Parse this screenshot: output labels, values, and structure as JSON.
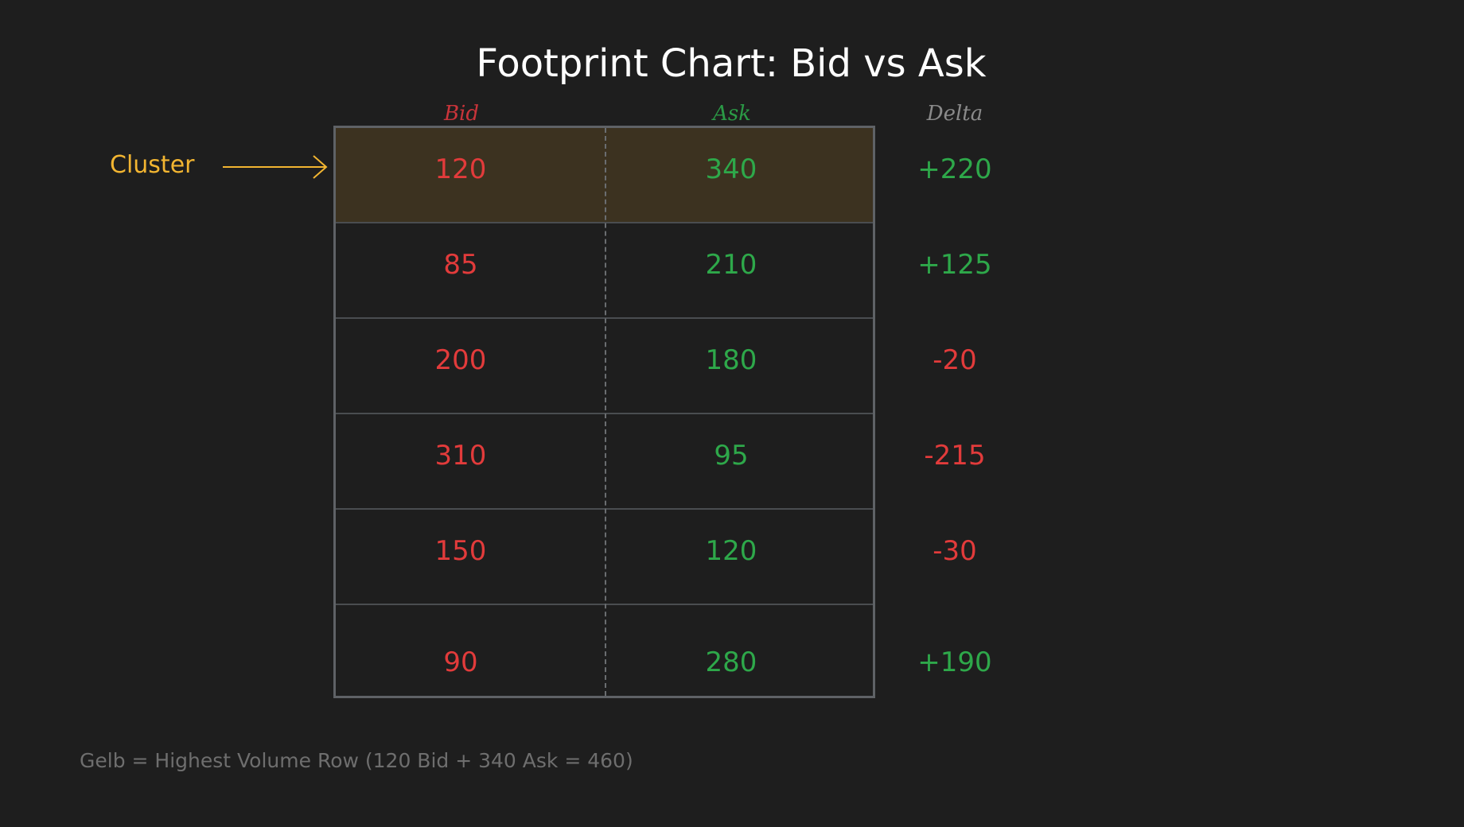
{
  "title": "Footprint Chart: Bid vs Ask",
  "headers": {
    "bid": "Bid",
    "ask": "Ask",
    "delta": "Delta"
  },
  "cluster_label": "Cluster",
  "rows": [
    {
      "bid": "120",
      "ask": "340",
      "delta": "+220",
      "highlight": true
    },
    {
      "bid": "85",
      "ask": "210",
      "delta": "+125"
    },
    {
      "bid": "200",
      "ask": "180",
      "delta": "-20"
    },
    {
      "bid": "310",
      "ask": "95",
      "delta": "-215"
    },
    {
      "bid": "150",
      "ask": "120",
      "delta": "-30"
    },
    {
      "bid": "90",
      "ask": "280",
      "delta": "+190"
    }
  ],
  "footnote": "Gelb = Highest Volume Row (120 Bid + 340 Ask = 460)",
  "colors": {
    "background": "#1e1e1e",
    "bid": "#e23b3b",
    "ask": "#2ea84a",
    "highlight": "#3c3220",
    "cluster": "#f2b531",
    "footnote": "#6e6e6e"
  }
}
